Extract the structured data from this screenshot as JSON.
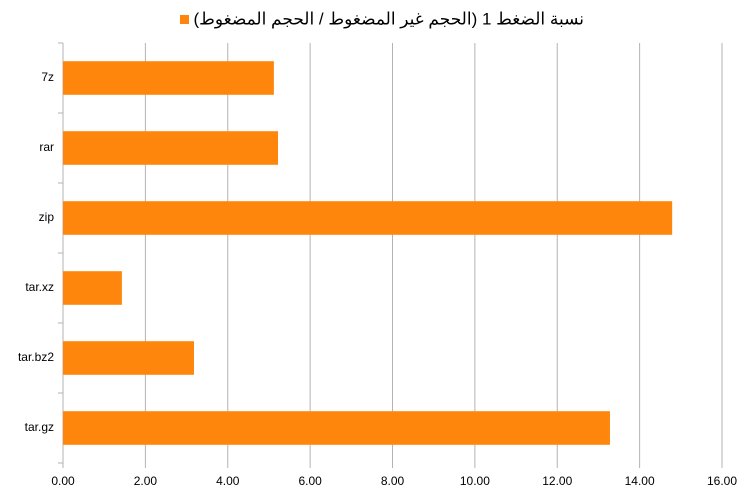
{
  "chart_data": {
    "type": "bar",
    "orientation": "horizontal",
    "categories": [
      "7z",
      "rar",
      "zip",
      "tar.xz",
      "tar.bz2",
      "tar.gz"
    ],
    "series": [
      {
        "name": "نسبة الضغط 1 (الحجم غير المضغوط / الحجم المضغوط)",
        "color": "#ff860d",
        "values": [
          5.12,
          5.22,
          14.79,
          1.43,
          3.18,
          13.28
        ]
      }
    ],
    "xlim": [
      0,
      16
    ],
    "xticks": [
      {
        "value": 0,
        "label": "0.00"
      },
      {
        "value": 2,
        "label": "2.00"
      },
      {
        "value": 4,
        "label": "4.00"
      },
      {
        "value": 6,
        "label": "6.00"
      },
      {
        "value": 8,
        "label": "8.00"
      },
      {
        "value": 10,
        "label": "10.00"
      },
      {
        "value": 12,
        "label": "12.00"
      },
      {
        "value": 14,
        "label": "14.00"
      },
      {
        "value": 16,
        "label": "16.00"
      }
    ],
    "grid": true,
    "legend": "top"
  }
}
